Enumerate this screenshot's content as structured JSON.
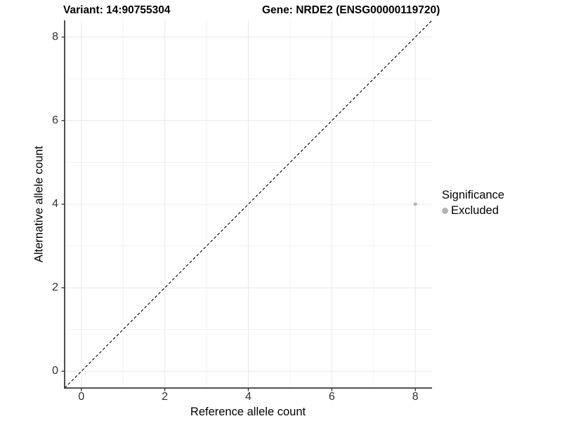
{
  "titles": {
    "left": "Variant: 14:90755304",
    "right": "Gene: NRDE2 (ENSG00000119720)"
  },
  "chart_data": {
    "type": "scatter",
    "title_left": "Variant: 14:90755304",
    "title_right": "Gene: NRDE2 (ENSG00000119720)",
    "xlabel": "Reference allele count",
    "ylabel": "Alternative allele count",
    "xlim": [
      -0.4,
      8.4
    ],
    "ylim": [
      -0.4,
      8.4
    ],
    "x_ticks": [
      0,
      2,
      4,
      6,
      8
    ],
    "y_ticks": [
      0,
      2,
      4,
      6,
      8
    ],
    "x_minor": [
      1,
      3,
      5,
      7
    ],
    "y_minor": [
      1,
      3,
      5,
      7
    ],
    "grid": true,
    "legend_position": "right",
    "reference_line": {
      "kind": "identity y=x",
      "style": "dashed",
      "color": "#000000"
    },
    "series": [
      {
        "name": "Excluded",
        "color": "#b4b4b4",
        "points": [
          {
            "x": 8,
            "y": 4
          }
        ]
      }
    ],
    "legend": {
      "title": "Significance",
      "entries": [
        {
          "label": "Excluded",
          "color": "#b4b4b4"
        }
      ]
    }
  },
  "colors": {
    "background": "#ffffff",
    "grid_major": "#e8e8e8",
    "grid_minor": "#f2f2f2",
    "axis_line": "#3a3a3a",
    "tick_mark": "#3a3a3a",
    "tick_label": "#303030",
    "point": "#b4b4b4",
    "dashed_line": "#000000"
  }
}
